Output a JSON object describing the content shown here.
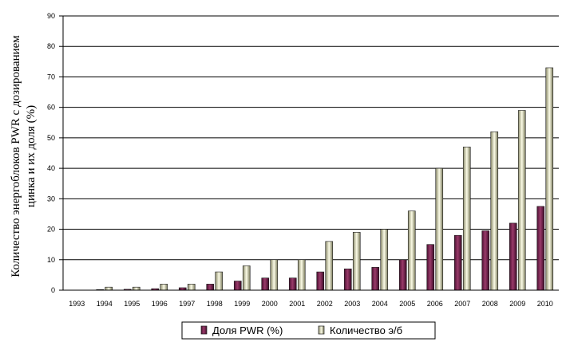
{
  "chart_data": {
    "type": "bar",
    "categories": [
      "1993",
      "1994",
      "1995",
      "1996",
      "1997",
      "1998",
      "1999",
      "2000",
      "2001",
      "2002",
      "2003",
      "2004",
      "2005",
      "2006",
      "2007",
      "2008",
      "2009",
      "2010"
    ],
    "series": [
      {
        "name": "Доля PWR (%)",
        "color": "#7a2350",
        "values": [
          0,
          0.2,
          0.3,
          0.5,
          0.8,
          2,
          3,
          4,
          4,
          6,
          7,
          7.5,
          10,
          15,
          18,
          19.5,
          22,
          27.5
        ]
      },
      {
        "name": "Количество э/б",
        "color": "#f2f0c8",
        "values": [
          0,
          1,
          1,
          2,
          2,
          6,
          8,
          10,
          10,
          16,
          19,
          20,
          26,
          40,
          47,
          52,
          59,
          73
        ]
      }
    ],
    "ylim": [
      0,
      90
    ],
    "yticks": [
      "0",
      "10",
      "20",
      "30",
      "40",
      "50",
      "60",
      "70",
      "80",
      "90"
    ],
    "ylabel_line1": "Количество энергоблоков PWR с дозированием",
    "ylabel_line2": "цинка и их доля (%)",
    "xlabel": "",
    "grid": true,
    "legend_placement": "bottom"
  }
}
